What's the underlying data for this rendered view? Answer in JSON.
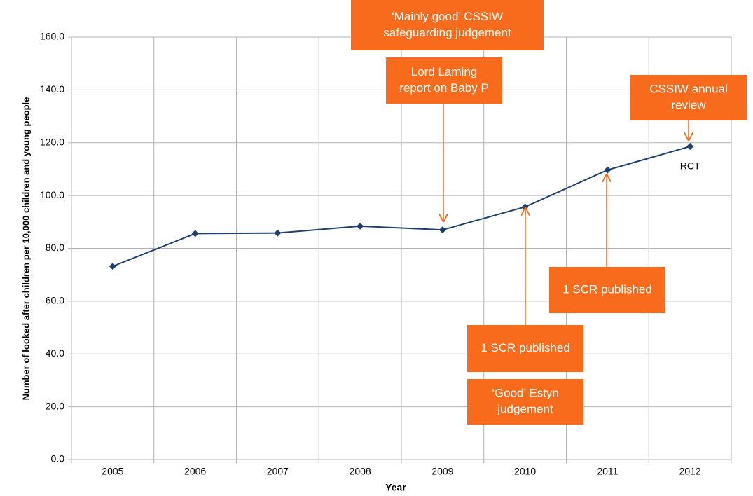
{
  "chart_data": {
    "type": "line",
    "x_label": "Year",
    "y_label": "Number of looked after children per 10,000 children and young people",
    "categories": [
      "2005",
      "2006",
      "2007",
      "2008",
      "2009",
      "2010",
      "2011",
      "2012"
    ],
    "series": [
      {
        "name": "RCT",
        "color": "#1f3f6e",
        "values": [
          73.2,
          85.6,
          85.8,
          88.4,
          87.0,
          95.7,
          109.7,
          118.6
        ]
      }
    ],
    "ylim": [
      0,
      160
    ],
    "yticks": [
      {
        "value": 0,
        "label": "0.0"
      },
      {
        "value": 20,
        "label": "20.0"
      },
      {
        "value": 40,
        "label": "40.0"
      },
      {
        "value": 60,
        "label": "60.0"
      },
      {
        "value": 80,
        "label": "80.0"
      },
      {
        "value": 100,
        "label": "100.0"
      },
      {
        "value": 120,
        "label": "120.0"
      },
      {
        "value": 140,
        "label": "140.0"
      },
      {
        "value": 160,
        "label": "160.0"
      }
    ],
    "grid": true,
    "annotation_color": "#f86a1c",
    "annotations": [
      {
        "lines": [
          "‘Mainly good’ CSSIW",
          "safeguarding judgement"
        ]
      },
      {
        "lines": [
          "Lord Laming",
          "report on Baby P"
        ]
      },
      {
        "lines": [
          "CSSIW annual",
          "review"
        ]
      },
      {
        "lines": [
          "1 SCR published"
        ]
      },
      {
        "lines": [
          "1 SCR published"
        ]
      },
      {
        "lines": [
          "‘Good’ Estyn",
          "judgement"
        ]
      }
    ]
  }
}
